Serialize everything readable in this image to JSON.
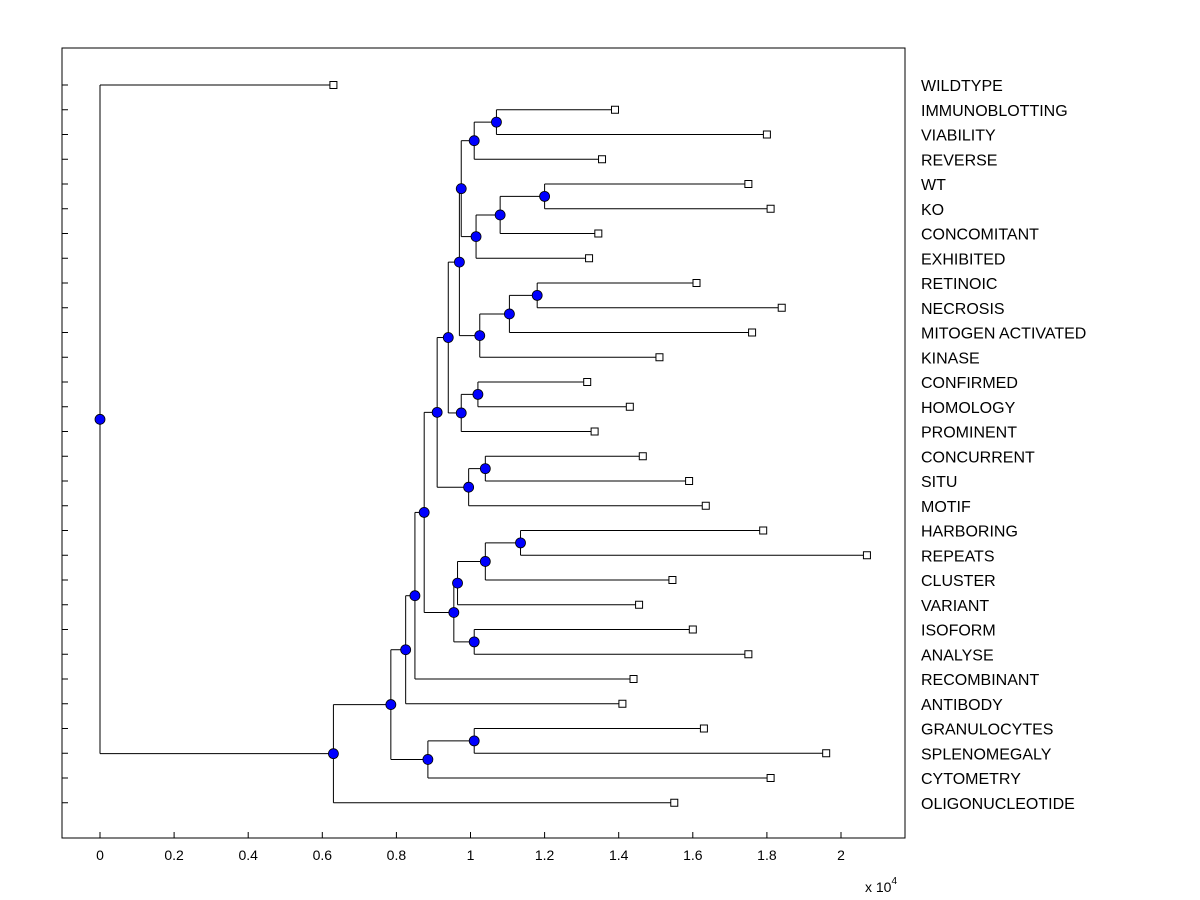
{
  "chart_data": {
    "type": "dendrogram",
    "x_ticks": [
      0,
      0.2,
      0.4,
      0.6,
      0.8,
      1,
      1.2,
      1.4,
      1.6,
      1.8,
      2
    ],
    "x_multiplier_label": "x 10",
    "x_multiplier_exponent": "4",
    "xlim": [
      -0.1,
      2.18
    ],
    "leaf_count": 30,
    "leaves": [
      {
        "label": "WILDTYPE",
        "x": 0.63
      },
      {
        "label": "IMMUNOBLOTTING",
        "x": 1.39
      },
      {
        "label": "VIABILITY",
        "x": 1.8
      },
      {
        "label": "REVERSE",
        "x": 1.355
      },
      {
        "label": "WT",
        "x": 1.75
      },
      {
        "label": "KO",
        "x": 1.81
      },
      {
        "label": "CONCOMITANT",
        "x": 1.345
      },
      {
        "label": "EXHIBITED",
        "x": 1.32
      },
      {
        "label": "RETINOIC",
        "x": 1.61
      },
      {
        "label": "NECROSIS",
        "x": 1.84
      },
      {
        "label": "MITOGEN ACTIVATED",
        "x": 1.76
      },
      {
        "label": "KINASE",
        "x": 1.51
      },
      {
        "label": "CONFIRMED",
        "x": 1.315
      },
      {
        "label": "HOMOLOGY",
        "x": 1.43
      },
      {
        "label": "PROMINENT",
        "x": 1.335
      },
      {
        "label": "CONCURRENT",
        "x": 1.465
      },
      {
        "label": "SITU",
        "x": 1.59
      },
      {
        "label": "MOTIF",
        "x": 1.635
      },
      {
        "label": "HARBORING",
        "x": 1.79
      },
      {
        "label": "REPEATS",
        "x": 2.07
      },
      {
        "label": "CLUSTER",
        "x": 1.545
      },
      {
        "label": "VARIANT",
        "x": 1.455
      },
      {
        "label": "ISOFORM",
        "x": 1.6
      },
      {
        "label": "ANALYSE",
        "x": 1.75
      },
      {
        "label": "RECOMBINANT",
        "x": 1.44
      },
      {
        "label": "ANTIBODY",
        "x": 1.41
      },
      {
        "label": "GRANULOCYTES",
        "x": 1.63
      },
      {
        "label": "SPLENOMEGALY",
        "x": 1.96
      },
      {
        "label": "CYTOMETRY",
        "x": 1.81
      },
      {
        "label": "OLIGONUCLEOTIDE",
        "x": 1.55
      }
    ],
    "nodes": [
      {
        "id": "n_imm_via",
        "x": 1.07,
        "children": [
          "L1",
          "L2"
        ]
      },
      {
        "id": "n_a",
        "x": 1.01,
        "children": [
          "n_imm_via",
          "L3"
        ]
      },
      {
        "id": "n_wt_ko",
        "x": 1.2,
        "children": [
          "L4",
          "L5"
        ]
      },
      {
        "id": "n_b",
        "x": 1.08,
        "children": [
          "n_wt_ko",
          "L6"
        ]
      },
      {
        "id": "n_c",
        "x": 1.015,
        "children": [
          "n_b",
          "L7"
        ]
      },
      {
        "id": "n_d",
        "x": 0.975,
        "children": [
          "n_a",
          "n_c"
        ]
      },
      {
        "id": "n_ret_nec",
        "x": 1.18,
        "children": [
          "L8",
          "L9"
        ]
      },
      {
        "id": "n_e",
        "x": 1.105,
        "children": [
          "n_ret_nec",
          "L10"
        ]
      },
      {
        "id": "n_f",
        "x": 1.025,
        "children": [
          "n_e",
          "L11"
        ]
      },
      {
        "id": "n_g",
        "x": 0.97,
        "children": [
          "n_d",
          "n_f"
        ]
      },
      {
        "id": "n_con_hom",
        "x": 1.02,
        "children": [
          "L12",
          "L13"
        ]
      },
      {
        "id": "n_h",
        "x": 0.975,
        "children": [
          "n_con_hom",
          "L14"
        ]
      },
      {
        "id": "n_i",
        "x": 0.94,
        "children": [
          "n_g",
          "n_h"
        ]
      },
      {
        "id": "n_conc_situ",
        "x": 1.04,
        "children": [
          "L15",
          "L16"
        ]
      },
      {
        "id": "n_j",
        "x": 0.995,
        "children": [
          "n_conc_situ",
          "L17"
        ]
      },
      {
        "id": "n_k",
        "x": 0.91,
        "children": [
          "n_i",
          "n_j"
        ]
      },
      {
        "id": "n_har_rep",
        "x": 1.135,
        "children": [
          "L18",
          "L19"
        ]
      },
      {
        "id": "n_l",
        "x": 1.04,
        "children": [
          "n_har_rep",
          "L20"
        ]
      },
      {
        "id": "n_m",
        "x": 0.965,
        "children": [
          "n_l",
          "L21"
        ]
      },
      {
        "id": "n_iso_ana",
        "x": 1.01,
        "children": [
          "L22",
          "L23"
        ]
      },
      {
        "id": "n_n",
        "x": 0.955,
        "children": [
          "n_m",
          "n_iso_ana"
        ]
      },
      {
        "id": "n_o",
        "x": 0.875,
        "children": [
          "n_k",
          "n_n"
        ]
      },
      {
        "id": "n_p",
        "x": 0.85,
        "children": [
          "n_o",
          "L24"
        ]
      },
      {
        "id": "n_q",
        "x": 0.825,
        "children": [
          "n_p",
          "L25"
        ]
      },
      {
        "id": "n_gra_spl",
        "x": 1.01,
        "children": [
          "L26",
          "L27"
        ]
      },
      {
        "id": "n_r",
        "x": 0.885,
        "children": [
          "n_gra_spl",
          "L28"
        ]
      },
      {
        "id": "n_s",
        "x": 0.785,
        "children": [
          "n_q",
          "n_r"
        ]
      },
      {
        "id": "n_t",
        "x": 0.63,
        "children": [
          "n_s",
          "L29"
        ]
      },
      {
        "id": "n_root",
        "x": 0.0,
        "children": [
          "L0",
          "n_t"
        ]
      }
    ],
    "leaf_marker": "open-square",
    "node_marker": "filled-circle",
    "node_color": "#0000ff",
    "line_color": "#000000",
    "grid": false
  }
}
